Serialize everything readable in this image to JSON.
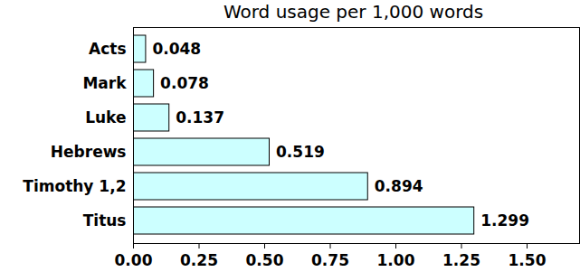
{
  "chart_data": {
    "type": "bar",
    "title": "Word usage per 1,000 words",
    "orientation": "horizontal",
    "categories": [
      "Acts",
      "Mark",
      "Luke",
      "Hebrews",
      "Timothy 1,2",
      "Titus"
    ],
    "values": [
      0.048,
      0.078,
      0.137,
      0.519,
      0.894,
      1.299
    ],
    "color": "#ccffff",
    "xlim": [
      0,
      1.7
    ],
    "xticks": [
      {
        "value": 0,
        "label": "0.00"
      },
      {
        "value": 0.25,
        "label": "0.25"
      },
      {
        "value": 0.5,
        "label": "0.50"
      },
      {
        "value": 0.75,
        "label": "0.75"
      },
      {
        "value": 1,
        "label": "1.00"
      },
      {
        "value": 1.25,
        "label": "1.25"
      },
      {
        "value": 1.5,
        "label": "1.50"
      }
    ],
    "grid": false,
    "data_labels": true
  }
}
